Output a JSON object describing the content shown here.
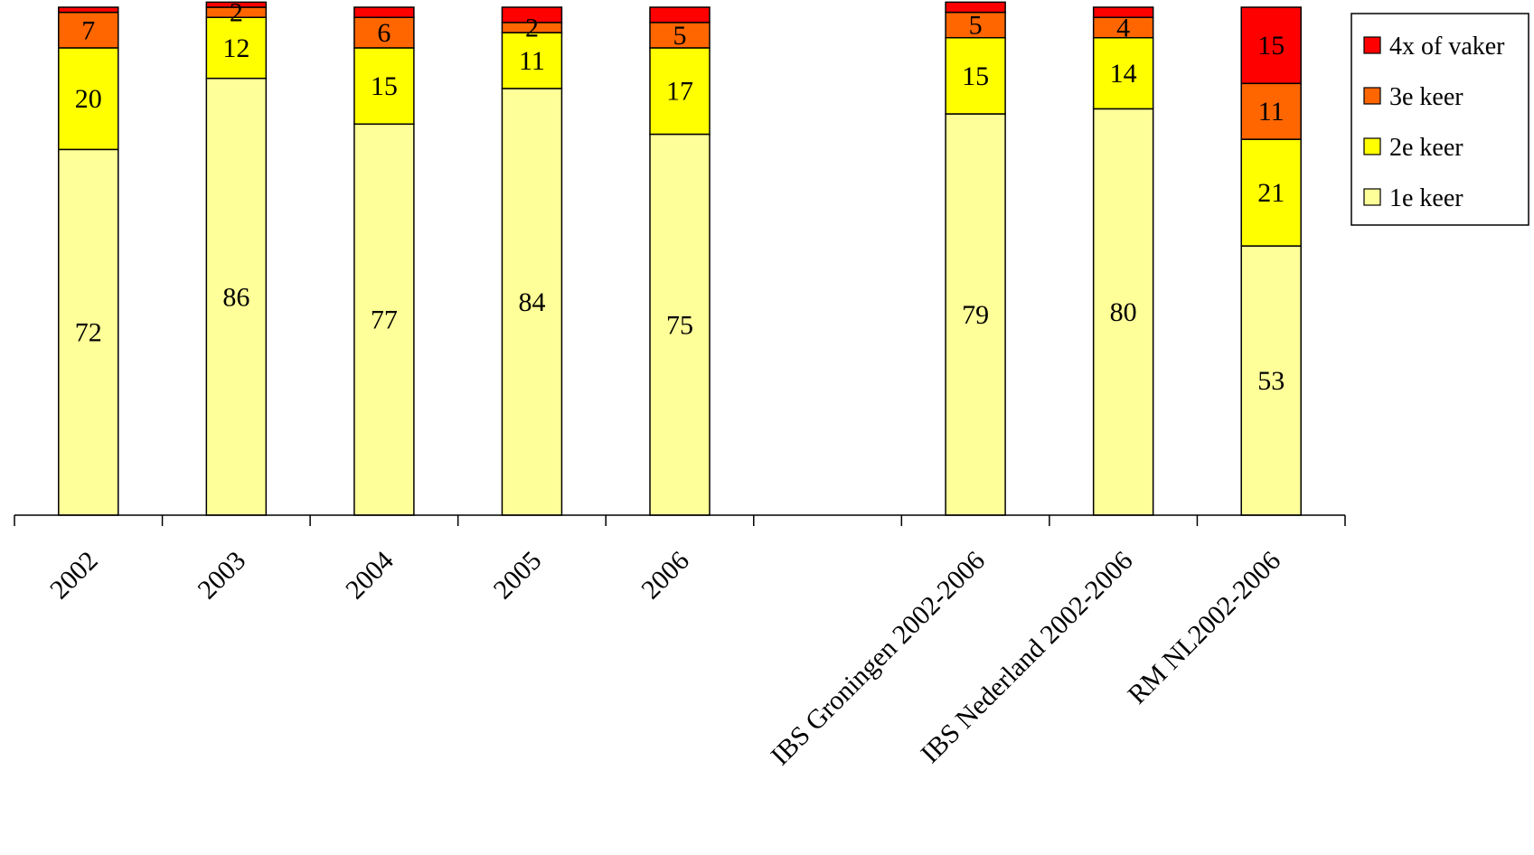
{
  "chart_data": {
    "type": "bar",
    "stacked": true,
    "percent_stacked": true,
    "categories": [
      "2002",
      "2003",
      "2004",
      "2005",
      "2006",
      "",
      "IBS Groningen 2002-2006",
      "IBS Nederland 2002-2006",
      "RM NL2002-2006"
    ],
    "series": [
      {
        "name": "1e keer",
        "color": "#FFFF99",
        "values": [
          72,
          86,
          77,
          84,
          75,
          null,
          79,
          80,
          53
        ],
        "labels": [
          "72",
          "86",
          "77",
          "84",
          "75",
          "",
          "79",
          "80",
          "53"
        ]
      },
      {
        "name": "2e keer",
        "color": "#FFFF00",
        "values": [
          20,
          12,
          15,
          11,
          17,
          null,
          15,
          14,
          21
        ],
        "labels": [
          "20",
          "12",
          "15",
          "11",
          "17",
          "",
          "15",
          "14",
          "21"
        ]
      },
      {
        "name": "3e keer",
        "color": "#FF6600",
        "values": [
          7,
          2,
          6,
          2,
          5,
          null,
          5,
          4,
          11
        ],
        "labels": [
          "7",
          "2",
          "6",
          "2",
          "5",
          "",
          "5",
          "4",
          "11"
        ]
      },
      {
        "name": "4x of vaker",
        "color": "#FF0000",
        "values": [
          1,
          1,
          2,
          3,
          3,
          null,
          2,
          2,
          15
        ],
        "labels": [
          "",
          "",
          "",
          "",
          "",
          "",
          "",
          "",
          "15"
        ]
      }
    ],
    "ylim": [
      0,
      100
    ],
    "title": "",
    "xlabel": "",
    "ylabel": "",
    "grid": false,
    "legend_position": "top-right",
    "legend_order": [
      "4x of vaker",
      "3e keer",
      "2e keer",
      "1e keer"
    ]
  }
}
